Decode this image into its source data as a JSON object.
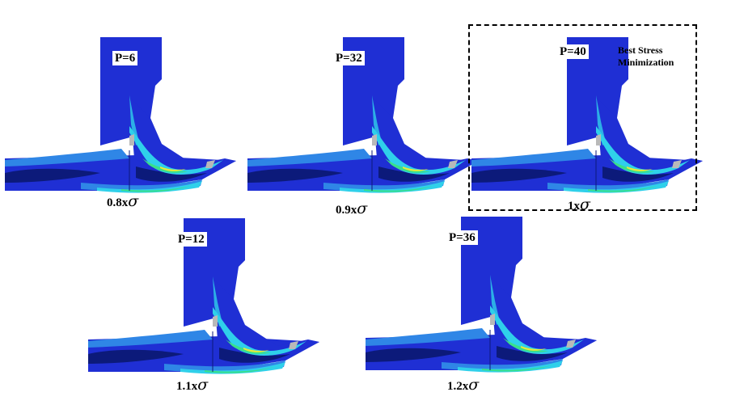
{
  "panels": [
    {
      "p_label": "P=6",
      "caption_num": "0.8",
      "caption_x": "x",
      "caption_sym": "σ"
    },
    {
      "p_label": "P=32",
      "caption_num": "0.9",
      "caption_x": "x",
      "caption_sym": "σ"
    },
    {
      "p_label": "P=40",
      "caption_num": "1",
      "caption_x": "x",
      "caption_sym": "σ"
    },
    {
      "p_label": "P=12",
      "caption_num": "1.1",
      "caption_x": "x",
      "caption_sym": "σ"
    },
    {
      "p_label": "P=36",
      "caption_num": "1.2",
      "caption_x": "x",
      "caption_sym": "σ"
    }
  ],
  "highlight": {
    "line1": "Best Stress",
    "line2": "Minimization"
  },
  "colors": {
    "body": "#1f2fd4",
    "dark": "#0c1a7a",
    "mid": "#2f86e6",
    "cyan": "#2fd0ea",
    "green": "#39e08a",
    "yellow": "#e7ea3a",
    "gray": "#b9b9b9"
  }
}
